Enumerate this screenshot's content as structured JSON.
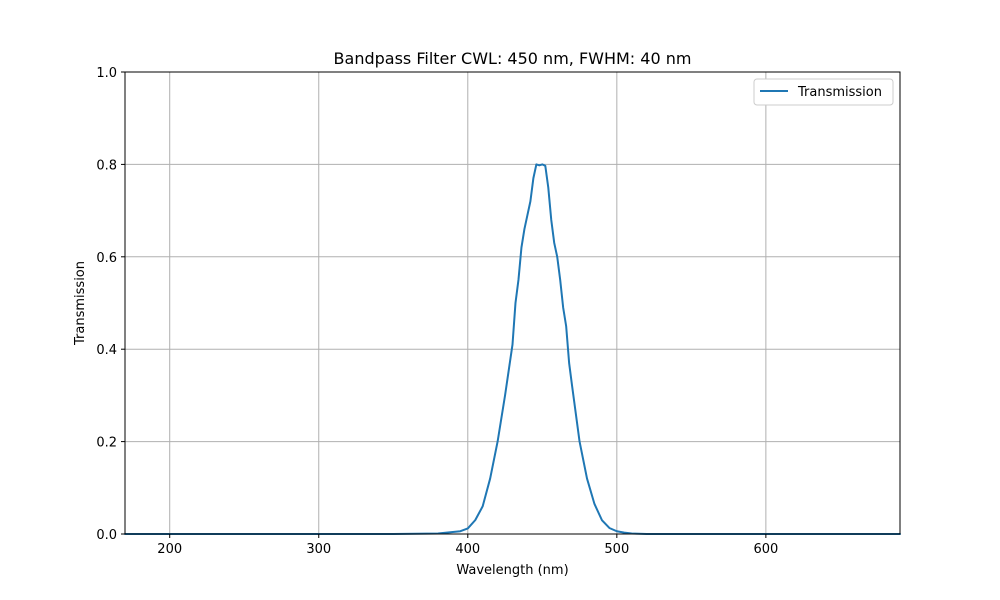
{
  "chart_data": {
    "type": "line",
    "title": "Bandpass Filter CWL: 450 nm, FWHM: 40 nm",
    "xlabel": "Wavelength (nm)",
    "ylabel": "Transmission",
    "xlim": [
      170,
      690
    ],
    "ylim": [
      0.0,
      1.0
    ],
    "xticks": [
      200,
      300,
      400,
      500,
      600
    ],
    "xtick_labels": [
      "200",
      "300",
      "400",
      "500",
      "600"
    ],
    "yticks": [
      0.0,
      0.2,
      0.4,
      0.6,
      0.8,
      1.0
    ],
    "ytick_labels": [
      "0.0",
      "0.2",
      "0.4",
      "0.6",
      "0.8",
      "1.0"
    ],
    "grid": true,
    "legend_position": "top-right",
    "series": [
      {
        "name": "Transmission",
        "color": "#1f77b4",
        "x": [
          170,
          350,
          380,
          395,
          400,
          405,
          410,
          415,
          420,
          425,
          430,
          432,
          434,
          436,
          438,
          440,
          442,
          444,
          446,
          448,
          450,
          452,
          454,
          456,
          458,
          460,
          462,
          464,
          466,
          468,
          470,
          475,
          480,
          485,
          490,
          495,
          500,
          505,
          510,
          520,
          550,
          690
        ],
        "y": [
          0.0,
          0.0,
          0.001,
          0.006,
          0.012,
          0.03,
          0.06,
          0.12,
          0.2,
          0.3,
          0.41,
          0.5,
          0.55,
          0.62,
          0.66,
          0.69,
          0.72,
          0.77,
          0.8,
          0.798,
          0.8,
          0.797,
          0.75,
          0.68,
          0.63,
          0.6,
          0.55,
          0.49,
          0.45,
          0.37,
          0.32,
          0.2,
          0.12,
          0.065,
          0.03,
          0.013,
          0.006,
          0.003,
          0.001,
          0.0,
          0.0,
          0.0
        ]
      }
    ]
  }
}
